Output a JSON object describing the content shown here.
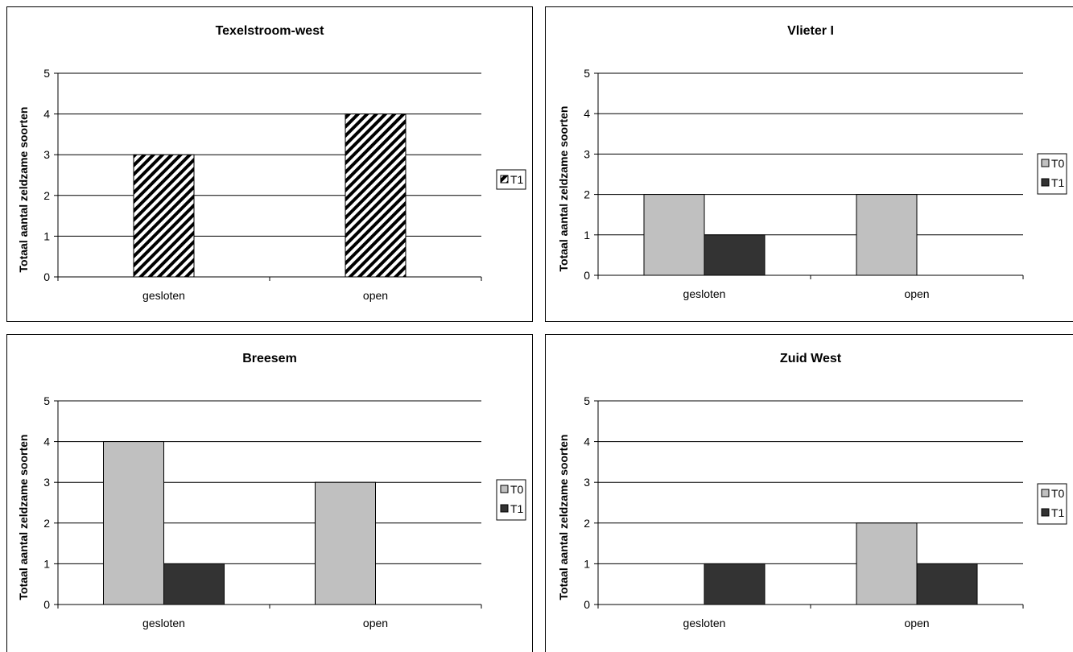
{
  "colors": {
    "T0": "#c0c0c0",
    "T1": "#333333",
    "frame": "#000000"
  },
  "chart_data": [
    {
      "type": "bar",
      "title": "Texelstroom-west",
      "ylabel": "Totaal aantal zeldzame soorten",
      "xlabel": "",
      "categories": [
        "gesloten",
        "open"
      ],
      "yticks": [
        "0",
        "1",
        "2",
        "3",
        "4",
        "5"
      ],
      "ylim": [
        0,
        5
      ],
      "grid": true,
      "legend_position": "right",
      "series": [
        {
          "name": "T1",
          "values": [
            3,
            4
          ],
          "fill": "hatch"
        }
      ]
    },
    {
      "type": "bar",
      "title": "Vlieter I",
      "ylabel": "Totaal aantal zeldzame soorten",
      "xlabel": "",
      "categories": [
        "gesloten",
        "open"
      ],
      "yticks": [
        "0",
        "1",
        "2",
        "3",
        "4",
        "5"
      ],
      "ylim": [
        0,
        5
      ],
      "grid": true,
      "legend_position": "right",
      "series": [
        {
          "name": "T0",
          "values": [
            2,
            2
          ],
          "fill": "T0"
        },
        {
          "name": "T1",
          "values": [
            1,
            0
          ],
          "fill": "T1"
        }
      ]
    },
    {
      "type": "bar",
      "title": "Breesem",
      "ylabel": "Totaal aantal zeldzame soorten",
      "xlabel": "",
      "categories": [
        "gesloten",
        "open"
      ],
      "yticks": [
        "0",
        "1",
        "2",
        "3",
        "4",
        "5"
      ],
      "ylim": [
        0,
        5
      ],
      "grid": true,
      "legend_position": "right",
      "series": [
        {
          "name": "T0",
          "values": [
            4,
            3
          ],
          "fill": "T0"
        },
        {
          "name": "T1",
          "values": [
            1,
            0
          ],
          "fill": "T1"
        }
      ]
    },
    {
      "type": "bar",
      "title": "Zuid West",
      "ylabel": "Totaal aantal zeldzame soorten",
      "xlabel": "",
      "categories": [
        "gesloten",
        "open"
      ],
      "yticks": [
        "0",
        "1",
        "2",
        "3",
        "4",
        "5"
      ],
      "ylim": [
        0,
        5
      ],
      "grid": true,
      "legend_position": "right",
      "series": [
        {
          "name": "T0",
          "values": [
            0,
            2
          ],
          "fill": "T0"
        },
        {
          "name": "T1",
          "values": [
            1,
            1
          ],
          "fill": "T1"
        }
      ]
    }
  ]
}
